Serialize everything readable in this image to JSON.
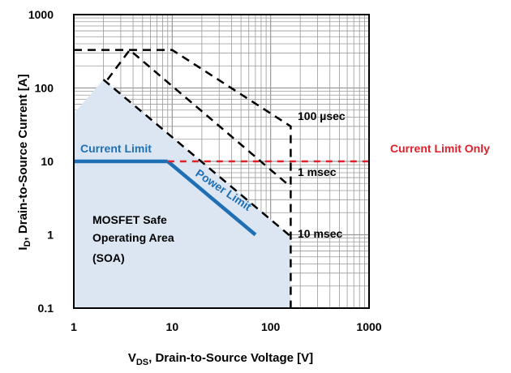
{
  "chart_data": {
    "type": "line",
    "x_scale": "log",
    "y_scale": "log",
    "xlim": [
      1,
      1000
    ],
    "ylim": [
      0.1,
      1000
    ],
    "grid": true,
    "x_ticks": [
      "1",
      "10",
      "100",
      "1000"
    ],
    "y_ticks": [
      "0.1",
      "1",
      "10",
      "100",
      "1000"
    ],
    "xlabel": {
      "main": "V",
      "sub": "DS",
      "rest": ", Drain-to-Source Voltage [V]"
    },
    "ylabel": {
      "main": "I",
      "sub": "D",
      "rest": ", Drain-to-Source Current [A]"
    },
    "colors": {
      "soa_fill": "#dce6f2",
      "limit_line": "#1f6fb4",
      "current_limit_only": "#e0202a",
      "dashed": "#000000",
      "grid": "#9a9a9a"
    },
    "soa_region": {
      "label_lines": [
        "MOSFET Safe",
        "Operating Area",
        "(SOA)"
      ],
      "boundary": [
        {
          "x": 1,
          "y": 0.1
        },
        {
          "x": 1,
          "y": 45
        },
        {
          "x": 2,
          "y": 130
        },
        {
          "x": 160,
          "y": 0.95
        },
        {
          "x": 160,
          "y": 0.1
        }
      ]
    },
    "series": [
      {
        "name": "Current Limit",
        "style": "solid",
        "points": [
          {
            "x": 1,
            "y": 10
          },
          {
            "x": 9,
            "y": 10
          }
        ]
      },
      {
        "name": "Power Limit",
        "style": "solid",
        "points": [
          {
            "x": 9,
            "y": 10
          },
          {
            "x": 70,
            "y": 1
          }
        ]
      },
      {
        "name": "Current Limit Only",
        "style": "dashed",
        "points": [
          {
            "x": 9,
            "y": 10
          },
          {
            "x": 1000,
            "y": 10
          }
        ]
      },
      {
        "name": "100 µsec",
        "style": "dashed",
        "points": [
          {
            "x": 1,
            "y": 330
          },
          {
            "x": 10,
            "y": 330
          },
          {
            "x": 160,
            "y": 30
          },
          {
            "x": 160,
            "y": 0.1
          }
        ]
      },
      {
        "name": "1 msec",
        "style": "dashed",
        "points": [
          {
            "x": 2.2,
            "y": 130
          },
          {
            "x": 3.7,
            "y": 330
          },
          {
            "x": 160,
            "y": 4.5
          }
        ]
      },
      {
        "name": "10 msec",
        "style": "dashed",
        "points": [
          {
            "x": 2,
            "y": 130
          },
          {
            "x": 160,
            "y": 0.95
          }
        ]
      }
    ],
    "annotations": {
      "current_limit": "Current Limit",
      "power_limit": "Power Limit",
      "current_limit_only": "Current Limit Only",
      "t100us": "100 µsec",
      "t1ms": "1 msec",
      "t10ms": "10 msec"
    }
  }
}
